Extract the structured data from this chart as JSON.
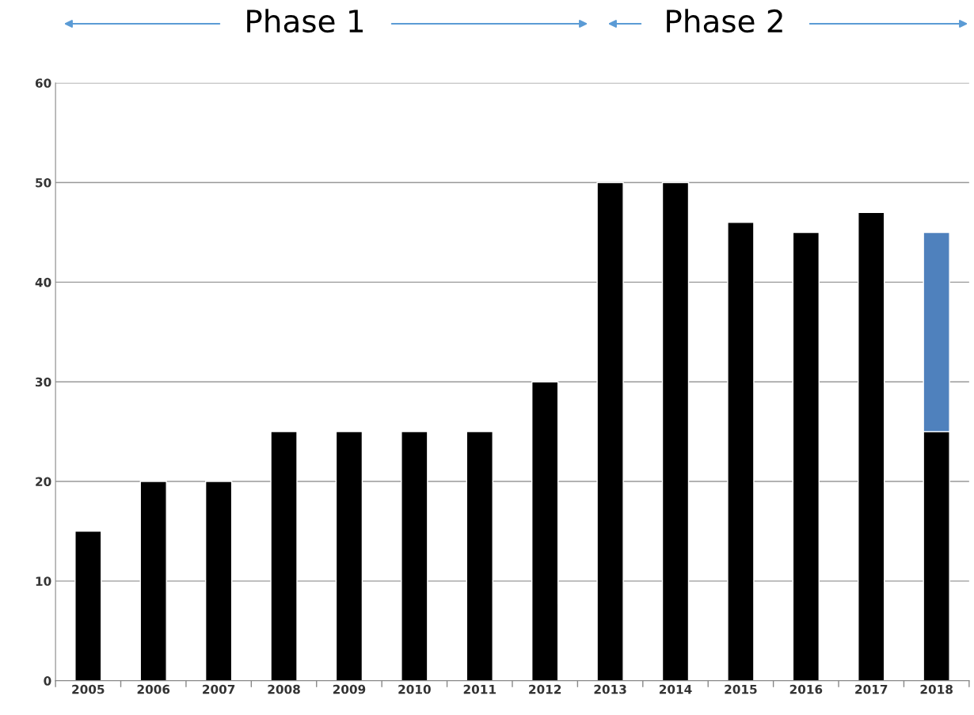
{
  "chart_data": {
    "type": "bar",
    "stacked": true,
    "categories": [
      "2005",
      "2006",
      "2007",
      "2008",
      "2009",
      "2010",
      "2011",
      "2012",
      "2013",
      "2014",
      "2015",
      "2016",
      "2017",
      "2018"
    ],
    "series": [
      {
        "color": "#000000",
        "values": [
          15,
          20,
          20,
          25,
          25,
          25,
          25,
          30,
          50,
          50,
          46,
          45,
          47,
          25
        ]
      },
      {
        "color": "#4f81bd",
        "values": [
          null,
          null,
          null,
          null,
          null,
          null,
          null,
          null,
          null,
          null,
          null,
          null,
          null,
          20
        ]
      }
    ],
    "ylim": [
      0,
      60
    ],
    "yticks": [
      0,
      10,
      20,
      30,
      40,
      50,
      60
    ],
    "grid": "y",
    "legend": false,
    "annotations": [
      "Phase 1",
      "Phase 2"
    ]
  }
}
